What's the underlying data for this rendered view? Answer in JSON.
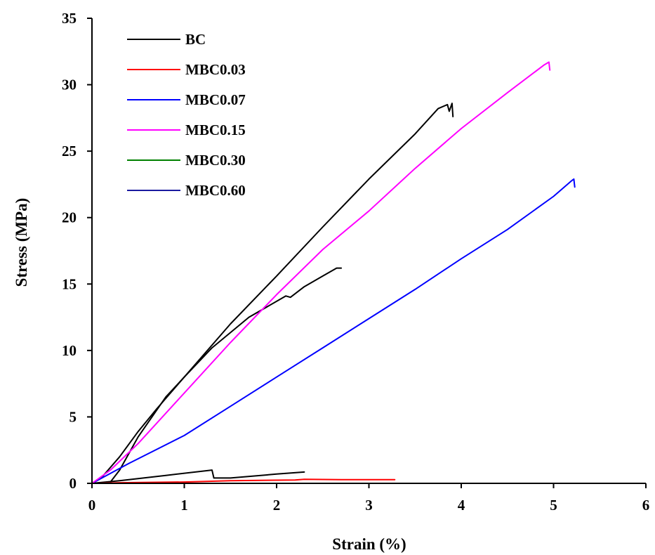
{
  "chart_data": {
    "type": "line",
    "xlabel": "Strain (%)",
    "ylabel": "Stress (MPa)",
    "xlim": [
      0,
      6
    ],
    "ylim": [
      0,
      35
    ],
    "xticks": [
      0,
      1,
      2,
      3,
      4,
      5,
      6
    ],
    "yticks": [
      0,
      5,
      10,
      15,
      20,
      25,
      30,
      35
    ],
    "grid": false,
    "legend_position": "top-left",
    "series": [
      {
        "name": "BC",
        "color": "#000000",
        "points": [
          [
            0,
            0
          ],
          [
            0.1,
            0.4
          ],
          [
            0.3,
            2.0
          ],
          [
            0.5,
            3.9
          ],
          [
            0.7,
            5.6
          ],
          [
            1.0,
            8.0
          ],
          [
            1.5,
            12.0
          ],
          [
            2.0,
            15.6
          ],
          [
            2.5,
            19.3
          ],
          [
            3.0,
            22.9
          ],
          [
            3.5,
            26.3
          ],
          [
            3.75,
            28.2
          ],
          [
            3.85,
            28.5
          ],
          [
            3.87,
            28.0
          ],
          [
            3.9,
            28.6
          ],
          [
            3.91,
            27.6
          ]
        ]
      },
      {
        "name": "MBC0.03",
        "color": "#ff0000",
        "points": [
          [
            0.05,
            0
          ],
          [
            0.3,
            0.05
          ],
          [
            1.0,
            0.1
          ],
          [
            1.5,
            0.2
          ],
          [
            2.2,
            0.25
          ],
          [
            2.3,
            0.3
          ],
          [
            2.7,
            0.28
          ],
          [
            3.28,
            0.28
          ]
        ]
      },
      {
        "name": "MBC0.07",
        "color": "#0000ff",
        "points": [
          [
            0,
            0
          ],
          [
            0.4,
            1.5
          ],
          [
            1.0,
            3.6
          ],
          [
            1.5,
            5.8
          ],
          [
            2.0,
            8.0
          ],
          [
            2.5,
            10.2
          ],
          [
            3.0,
            12.4
          ],
          [
            3.5,
            14.6
          ],
          [
            4.0,
            16.9
          ],
          [
            4.5,
            19.1
          ],
          [
            5.0,
            21.6
          ],
          [
            5.2,
            22.8
          ],
          [
            5.22,
            22.9
          ],
          [
            5.23,
            22.3
          ]
        ]
      },
      {
        "name": "MBC0.15",
        "color": "#ff00ff",
        "points": [
          [
            0,
            0
          ],
          [
            0.2,
            1.0
          ],
          [
            0.5,
            3.0
          ],
          [
            1.0,
            6.8
          ],
          [
            1.5,
            10.6
          ],
          [
            2.0,
            14.2
          ],
          [
            2.5,
            17.6
          ],
          [
            3.0,
            20.5
          ],
          [
            3.5,
            23.7
          ],
          [
            4.0,
            26.7
          ],
          [
            4.5,
            29.4
          ],
          [
            4.9,
            31.5
          ],
          [
            4.95,
            31.7
          ],
          [
            4.96,
            31.1
          ]
        ]
      },
      {
        "name": "MBC0.30",
        "color": "#008000",
        "points": []
      },
      {
        "name": "MBC0.60",
        "color": "#1a1aa0",
        "points": []
      }
    ],
    "unlabeled_curves": [
      {
        "color": "#000000",
        "points": [
          [
            0,
            0
          ],
          [
            0.2,
            0.1
          ],
          [
            0.3,
            1.0
          ],
          [
            0.5,
            3.5
          ],
          [
            0.8,
            6.5
          ],
          [
            1.0,
            8.0
          ],
          [
            1.3,
            10.2
          ],
          [
            1.7,
            12.5
          ],
          [
            2.1,
            14.1
          ],
          [
            2.15,
            14.0
          ],
          [
            2.3,
            14.8
          ],
          [
            2.5,
            15.6
          ],
          [
            2.65,
            16.2
          ],
          [
            2.7,
            16.2
          ]
        ]
      },
      {
        "color": "#000000",
        "points": [
          [
            0,
            0
          ],
          [
            0.3,
            0.2
          ],
          [
            0.8,
            0.6
          ],
          [
            1.3,
            1.0
          ],
          [
            1.32,
            0.4
          ],
          [
            1.5,
            0.4
          ],
          [
            2.0,
            0.7
          ],
          [
            2.3,
            0.85
          ]
        ]
      }
    ]
  }
}
